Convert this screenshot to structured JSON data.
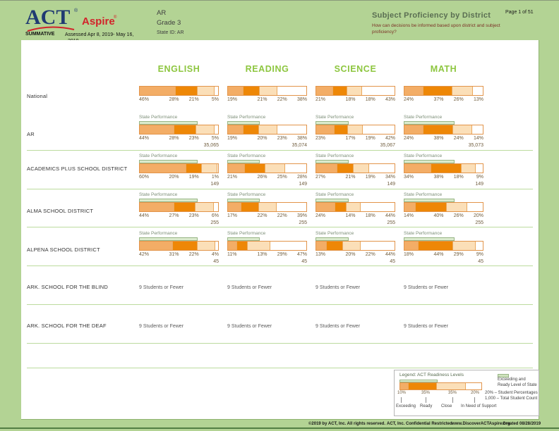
{
  "header": {
    "logo_act": "ACT",
    "logo_aspire": "Aspire",
    "registered_mark": "®",
    "summative_label": "SUMMATIVE",
    "assessed_line1": "Assessed Apr 8, 2019- May 16,",
    "assessed_line2": "2019",
    "region": "AR",
    "grade": "Grade 3",
    "state_id": "State ID: AR",
    "report_title": "Subject Proficiency by District",
    "report_question": "How can decisions be informed based upon district and subject proficiency?",
    "page_indicator": "Page 1 of 51"
  },
  "columns": [
    "ENGLISH",
    "READING",
    "SCIENCE",
    "MATH"
  ],
  "state_performance_label": "State Performance",
  "suppressed_text": "9 Students or Fewer",
  "state_exceeding_ready_pct": [
    72,
    39,
    40,
    62
  ],
  "rows": [
    {
      "label": "National",
      "show_state_line": false,
      "cells": [
        {
          "values": [
            46,
            28,
            21,
            5
          ]
        },
        {
          "values": [
            19,
            21,
            22,
            38
          ]
        },
        {
          "values": [
            21,
            18,
            18,
            43
          ]
        },
        {
          "values": [
            24,
            37,
            26,
            13
          ]
        }
      ]
    },
    {
      "label": "AR",
      "show_state_line": true,
      "cells": [
        {
          "values": [
            44,
            28,
            23,
            5
          ],
          "total": "35,065"
        },
        {
          "values": [
            19,
            20,
            23,
            38
          ],
          "total": "35,074"
        },
        {
          "values": [
            23,
            17,
            19,
            42
          ],
          "total": "35,067"
        },
        {
          "values": [
            24,
            38,
            24,
            14
          ],
          "total": "35,073"
        }
      ]
    },
    {
      "label": "ACADEMICS PLUS SCHOOL DISTRICT",
      "show_state_line": true,
      "cells": [
        {
          "values": [
            60,
            20,
            19,
            1
          ],
          "total": "149"
        },
        {
          "values": [
            21,
            26,
            25,
            28
          ],
          "total": "149"
        },
        {
          "values": [
            27,
            21,
            19,
            34
          ],
          "total": "149"
        },
        {
          "values": [
            34,
            38,
            18,
            9
          ],
          "total": "149"
        }
      ]
    },
    {
      "label": "ALMA SCHOOL DISTRICT",
      "show_state_line": true,
      "cells": [
        {
          "values": [
            44,
            27,
            23,
            6
          ],
          "total": "255"
        },
        {
          "values": [
            17,
            22,
            22,
            39
          ],
          "total": "255"
        },
        {
          "values": [
            24,
            14,
            18,
            44
          ],
          "total": "255"
        },
        {
          "values": [
            14,
            40,
            26,
            20
          ],
          "total": "255"
        }
      ]
    },
    {
      "label": "ALPENA SCHOOL DISTRICT",
      "show_state_line": true,
      "cells": [
        {
          "values": [
            42,
            31,
            22,
            4
          ],
          "total": "45"
        },
        {
          "values": [
            11,
            13,
            29,
            47
          ],
          "total": "45"
        },
        {
          "values": [
            13,
            20,
            22,
            44
          ],
          "total": "45"
        },
        {
          "values": [
            18,
            44,
            29,
            9
          ],
          "total": "45"
        }
      ]
    },
    {
      "label": "ARK. SCHOOL FOR THE BLIND",
      "suppressed": true
    },
    {
      "label": "ARK. SCHOOL FOR THE DEAF",
      "suppressed": true
    }
  ],
  "legend": {
    "title": "Legend: ACT Readiness Levels",
    "segments": [
      {
        "label": "Exceeding",
        "pct": "10%"
      },
      {
        "label": "Ready",
        "pct": "35%"
      },
      {
        "label": "Close",
        "pct": "35%"
      },
      {
        "label": "In Need of Support",
        "pct": "20%"
      }
    ],
    "state_line_label": "Exceeding and Ready Level of State",
    "pct_line": "20% – Student Percentages",
    "count_line": "1,000 – Total Student Count"
  },
  "footer": {
    "copyright": "©2019 by ACT, Inc. All rights reserved.",
    "confidential": "ACT, Inc. Confidential Restricted",
    "website": "www.DiscoverACTAspire.org",
    "created": "Created 08/28/2019"
  },
  "colors": {
    "page_bg": "#b3d394",
    "exceeding": "#f3ad66",
    "ready": "#ee8706",
    "close": "#fbdfb8",
    "in_need_of_support": "#ffffff",
    "bar_border": "#e2944a",
    "subject_header": "#8dc63f",
    "state_line": "#dcebcd"
  }
}
